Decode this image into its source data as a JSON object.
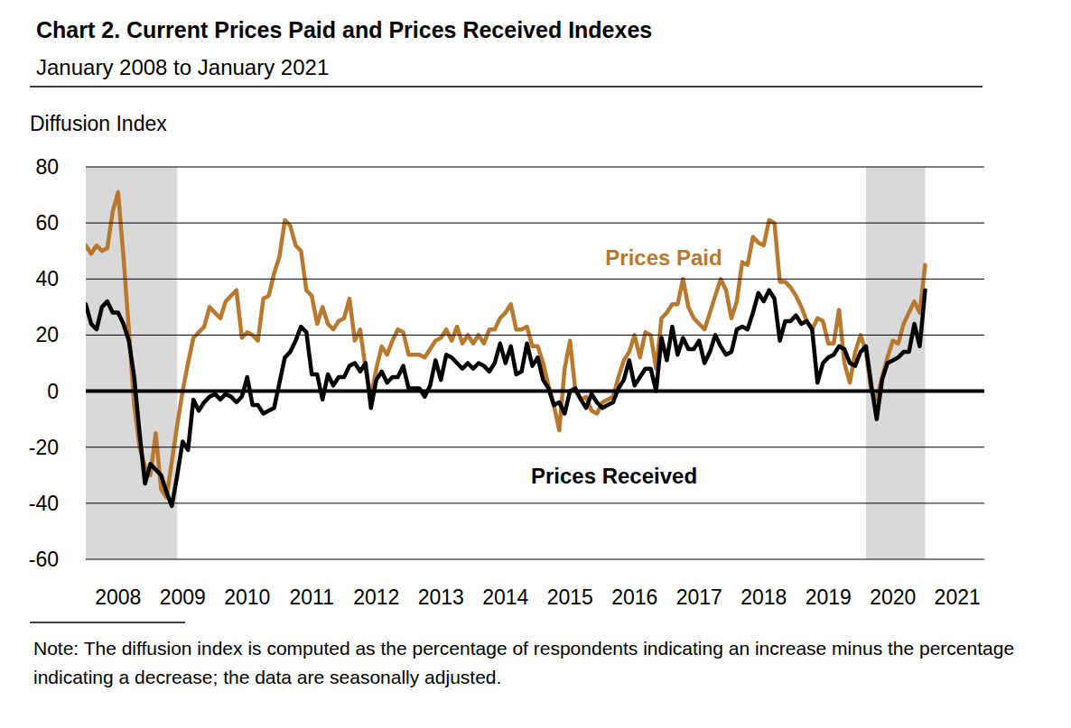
{
  "chart_data": {
    "type": "line",
    "title": "Chart 2. Current Prices Paid and Prices Received Indexes",
    "subtitle": "January 2008 to January 2021",
    "y_label": "Diffusion Index",
    "note": "Note: The diffusion index is computed as the percentage of respondents indicating an increase minus the percentage indicating a decrease; the data are seasonally adjusted.",
    "categories": [
      null,
      null,
      null,
      null,
      null,
      null,
      "2008",
      null,
      null,
      null,
      null,
      null,
      null,
      null,
      null,
      null,
      null,
      null,
      "2009",
      null,
      null,
      null,
      null,
      null,
      null,
      null,
      null,
      null,
      null,
      null,
      "2010",
      null,
      null,
      null,
      null,
      null,
      null,
      null,
      null,
      null,
      null,
      null,
      "2011",
      null,
      null,
      null,
      null,
      null,
      null,
      null,
      null,
      null,
      null,
      null,
      "2012",
      null,
      null,
      null,
      null,
      null,
      null,
      null,
      null,
      null,
      null,
      null,
      "2013",
      null,
      null,
      null,
      null,
      null,
      null,
      null,
      null,
      null,
      null,
      null,
      "2014",
      null,
      null,
      null,
      null,
      null,
      null,
      null,
      null,
      null,
      null,
      null,
      "2015",
      null,
      null,
      null,
      null,
      null,
      null,
      null,
      null,
      null,
      null,
      null,
      "2016",
      null,
      null,
      null,
      null,
      null,
      null,
      null,
      null,
      null,
      null,
      null,
      "2017",
      null,
      null,
      null,
      null,
      null,
      null,
      null,
      null,
      null,
      null,
      null,
      "2018",
      null,
      null,
      null,
      null,
      null,
      null,
      null,
      null,
      null,
      null,
      null,
      "2019",
      null,
      null,
      null,
      null,
      null,
      null,
      null,
      null,
      null,
      null,
      null,
      "2020",
      null,
      null,
      null,
      null,
      null,
      null,
      null,
      null,
      null,
      null,
      null,
      "2021",
      null,
      null,
      null,
      null,
      null
    ],
    "series": [
      {
        "name": "Prices Paid",
        "color": "#b8792e",
        "values": [
          52,
          49,
          52,
          50,
          51,
          64,
          71,
          48,
          22,
          -5,
          -20,
          -27,
          -30,
          -15,
          -35,
          -38,
          -25,
          -12,
          0,
          10,
          19,
          21,
          23,
          30,
          28,
          26,
          32,
          34,
          36,
          19,
          21,
          20,
          18,
          33,
          34,
          42,
          48,
          61,
          59,
          52,
          50,
          36,
          34,
          24,
          30,
          24,
          22,
          25,
          26,
          33,
          18,
          22,
          8,
          -2,
          8,
          16,
          13,
          18,
          22,
          21,
          13,
          13,
          13,
          12,
          15,
          18,
          19,
          22,
          18,
          23,
          17,
          20,
          17,
          20,
          17,
          22,
          22,
          26,
          28,
          31,
          22,
          22,
          23,
          16,
          16,
          10,
          2,
          -5,
          -14,
          8,
          18,
          0,
          -3,
          -2,
          -7,
          -8,
          -4,
          -3,
          -2,
          5,
          11,
          14,
          20,
          12,
          21,
          20,
          8,
          26,
          28,
          31,
          31,
          40,
          30,
          26,
          24,
          22,
          28,
          34,
          40,
          36,
          26,
          32,
          46,
          45,
          55,
          53,
          52,
          61,
          60,
          39,
          39,
          37,
          34,
          30,
          25,
          22,
          26,
          25,
          17,
          17,
          29,
          10,
          3,
          14,
          20,
          14,
          0,
          -3,
          5,
          12,
          18,
          17,
          24,
          28,
          32,
          28,
          45,
          null,
          null,
          null,
          null,
          null,
          null,
          null,
          null,
          null,
          null,
          null
        ]
      },
      {
        "name": "Prices Received",
        "color": "#000000",
        "values": [
          31,
          24,
          22,
          30,
          32,
          28,
          28,
          24,
          18,
          5,
          -15,
          -33,
          -26,
          -28,
          -30,
          -36,
          -41,
          -30,
          -18,
          -21,
          -3,
          -7,
          -4,
          -2,
          -1,
          -3,
          -1,
          -2,
          -4,
          -2,
          5,
          -5,
          -5,
          -8,
          -7,
          -6,
          3,
          12,
          14,
          18,
          23,
          21,
          6,
          6,
          -3,
          6,
          2,
          5,
          5,
          9,
          10,
          7,
          10,
          -6,
          4,
          7,
          3,
          5,
          5,
          9,
          1,
          1,
          1,
          -2,
          2,
          11,
          4,
          13,
          12,
          10,
          8,
          10,
          8,
          10,
          9,
          7,
          10,
          17,
          10,
          16,
          6,
          7,
          17,
          9,
          12,
          4,
          1,
          -5,
          -4,
          -8,
          0,
          1,
          -3,
          -6,
          -1,
          -4,
          -6,
          -5,
          -4,
          1,
          4,
          11,
          2,
          5,
          8,
          8,
          0,
          19,
          11,
          23,
          13,
          19,
          15,
          15,
          18,
          10,
          14,
          20,
          16,
          13,
          14,
          22,
          23,
          22,
          28,
          35,
          32,
          36,
          33,
          18,
          25,
          25,
          27,
          24,
          25,
          22,
          3,
          10,
          12,
          13,
          16,
          15,
          10,
          9,
          14,
          16,
          2,
          -10,
          4,
          10,
          11,
          12,
          14,
          14,
          24,
          16,
          36,
          null,
          null,
          null,
          null,
          null,
          null,
          null,
          null,
          null,
          null,
          null
        ]
      }
    ],
    "shaded_ranges": [
      {
        "start": 0,
        "end": 17
      },
      {
        "start": 145,
        "end": 156
      }
    ],
    "ylim": [
      -60,
      80
    ],
    "yticks": [
      -60,
      -40,
      -20,
      0,
      20,
      40,
      60,
      80
    ],
    "grid": true
  }
}
